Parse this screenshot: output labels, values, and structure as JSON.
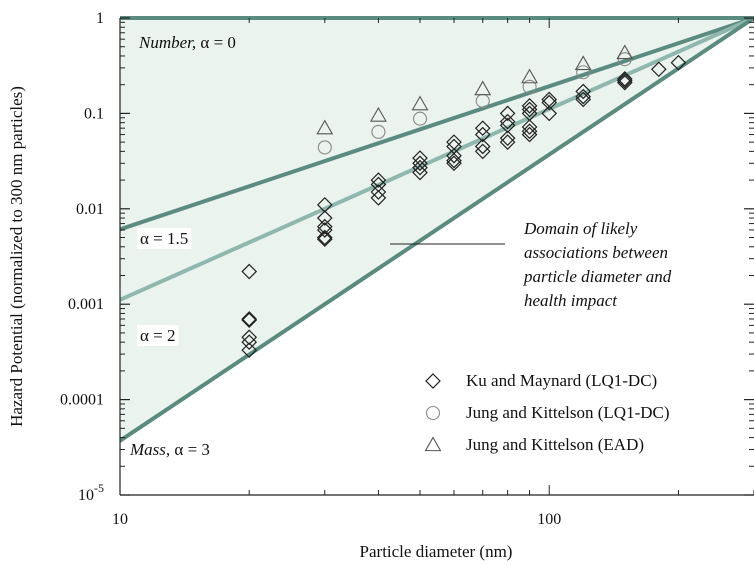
{
  "chart_data": {
    "type": "scatter",
    "x_scale": "log",
    "y_scale": "log",
    "xlim": [
      10,
      300
    ],
    "ylim": [
      1e-05,
      1
    ],
    "xlabel": "Particle diameter (nm)",
    "ylabel": "Hazard Potential (normalized to 300 nm particles)",
    "x_ticks": [
      {
        "value": 10,
        "label": "10"
      },
      {
        "value": 100,
        "label": "100"
      }
    ],
    "y_ticks": [
      {
        "value": 1,
        "label": "1",
        "sup": ""
      },
      {
        "value": 0.1,
        "label": "0.1",
        "sup": ""
      },
      {
        "value": 0.01,
        "label": "0.01",
        "sup": ""
      },
      {
        "value": 0.001,
        "label": "0.001",
        "sup": ""
      },
      {
        "value": 0.0001,
        "label": "0.0001",
        "sup": ""
      },
      {
        "value": 1e-05,
        "label": "10",
        "sup": "-5"
      }
    ],
    "lines": [
      {
        "alpha": 0,
        "prefix": "Number,",
        "label": "α = 0",
        "color": "#5b8a7f"
      },
      {
        "alpha": 1.5,
        "prefix": "",
        "label": "α = 1.5",
        "color": "#5b8a7f"
      },
      {
        "alpha": 2,
        "prefix": "",
        "label": "α = 2",
        "color": "#8fb7ad"
      },
      {
        "alpha": 3,
        "prefix": "Mass,",
        "label": "α = 3",
        "color": "#5b8a7f"
      }
    ],
    "region_fill": "#eaf3ee",
    "annotation": [
      "Domain of likely",
      "associations between",
      "particle diameter and",
      "health impact"
    ],
    "series": [
      {
        "name": "Ku and Maynard (LQ1-DC)",
        "marker": "diamond",
        "points": [
          [
            20,
            0.0022
          ],
          [
            20,
            0.0007
          ],
          [
            20,
            0.00068
          ],
          [
            20,
            0.00045
          ],
          [
            20,
            0.0004
          ],
          [
            20,
            0.00033
          ],
          [
            30,
            0.011
          ],
          [
            30,
            0.008
          ],
          [
            30,
            0.0065
          ],
          [
            30,
            0.006
          ],
          [
            30,
            0.005
          ],
          [
            30,
            0.0048
          ],
          [
            40,
            0.02
          ],
          [
            40,
            0.018
          ],
          [
            40,
            0.015
          ],
          [
            40,
            0.013
          ],
          [
            50,
            0.034
          ],
          [
            50,
            0.03
          ],
          [
            50,
            0.027
          ],
          [
            50,
            0.024
          ],
          [
            60,
            0.05
          ],
          [
            60,
            0.045
          ],
          [
            60,
            0.036
          ],
          [
            60,
            0.032
          ],
          [
            60,
            0.03
          ],
          [
            70,
            0.07
          ],
          [
            70,
            0.06
          ],
          [
            70,
            0.045
          ],
          [
            70,
            0.04
          ],
          [
            80,
            0.1
          ],
          [
            80,
            0.082
          ],
          [
            80,
            0.075
          ],
          [
            80,
            0.055
          ],
          [
            80,
            0.05
          ],
          [
            90,
            0.12
          ],
          [
            90,
            0.11
          ],
          [
            90,
            0.1
          ],
          [
            90,
            0.072
          ],
          [
            90,
            0.065
          ],
          [
            90,
            0.06
          ],
          [
            100,
            0.14
          ],
          [
            100,
            0.13
          ],
          [
            100,
            0.1
          ],
          [
            120,
            0.17
          ],
          [
            120,
            0.15
          ],
          [
            120,
            0.14
          ],
          [
            150,
            0.23
          ],
          [
            150,
            0.22
          ],
          [
            150,
            0.21
          ],
          [
            180,
            0.29
          ],
          [
            200,
            0.34
          ]
        ]
      },
      {
        "name": "Jung and Kittelson (LQ1-DC)",
        "marker": "circle",
        "points": [
          [
            30,
            0.044
          ],
          [
            40,
            0.064
          ],
          [
            50,
            0.088
          ],
          [
            70,
            0.135
          ],
          [
            90,
            0.19
          ],
          [
            120,
            0.27
          ],
          [
            150,
            0.37
          ]
        ]
      },
      {
        "name": "Jung and Kittelson (EAD)",
        "marker": "triangle",
        "points": [
          [
            30,
            0.07
          ],
          [
            40,
            0.095
          ],
          [
            50,
            0.125
          ],
          [
            70,
            0.18
          ],
          [
            90,
            0.24
          ],
          [
            120,
            0.33
          ],
          [
            150,
            0.43
          ]
        ]
      }
    ],
    "legend_position": "bottom-right"
  }
}
